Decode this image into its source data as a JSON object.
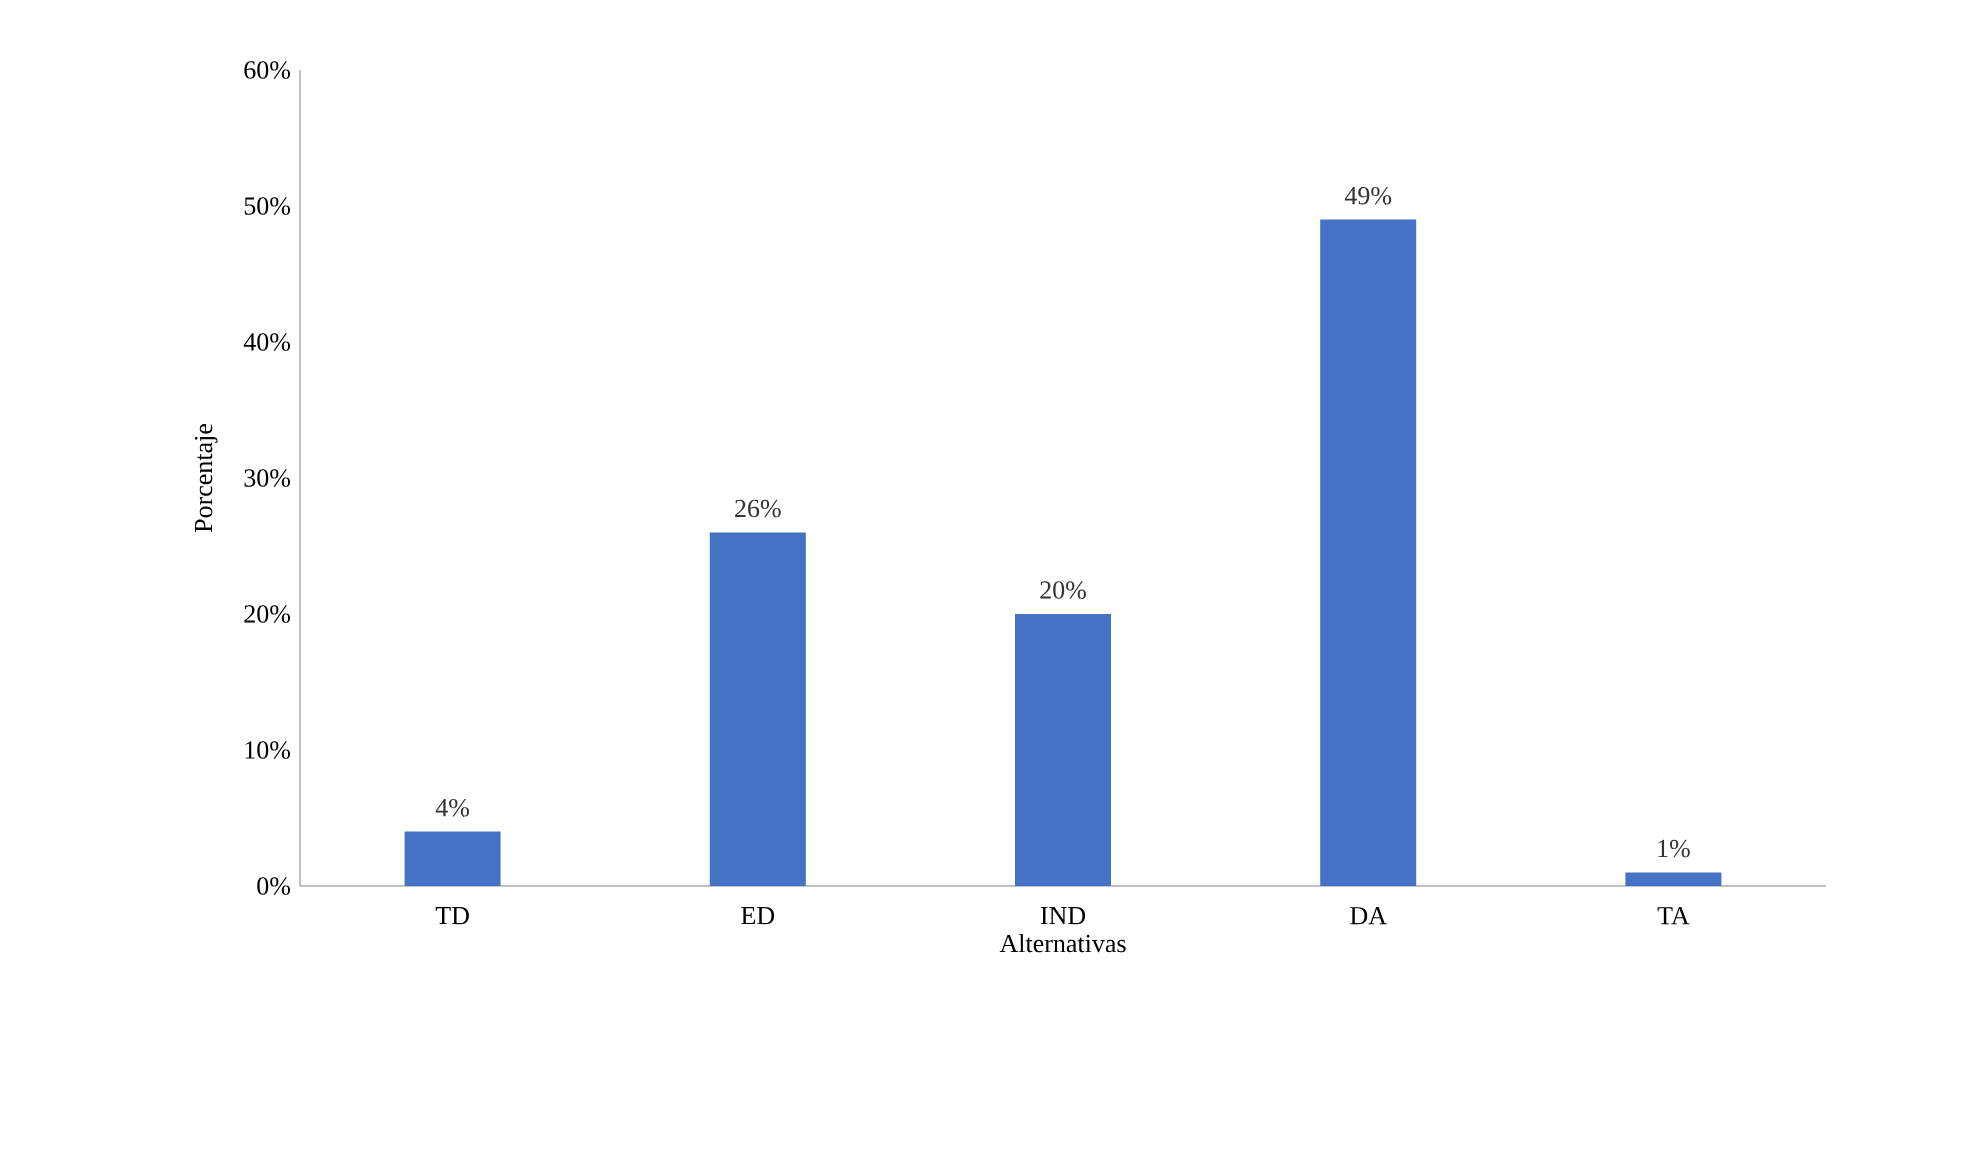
{
  "chart_data": {
    "type": "bar",
    "xlabel": "Alternativas",
    "ylabel": "Porcentaje",
    "categories": [
      "TD",
      "ED",
      "IND",
      "DA",
      "TA"
    ],
    "values": [
      4,
      26,
      20,
      49,
      1
    ],
    "value_labels": [
      "4%",
      "26%",
      "20%",
      "49%",
      "1%"
    ],
    "color": "#4472c4",
    "ylim": [
      0,
      60
    ],
    "yticks": [
      {
        "value": 0,
        "label": "0%"
      },
      {
        "value": 10,
        "label": "10%"
      },
      {
        "value": 20,
        "label": "20%"
      },
      {
        "value": 30,
        "label": "30%"
      },
      {
        "value": 40,
        "label": "40%"
      },
      {
        "value": 50,
        "label": "50%"
      },
      {
        "value": 60,
        "label": "60%"
      }
    ],
    "grid": false
  }
}
